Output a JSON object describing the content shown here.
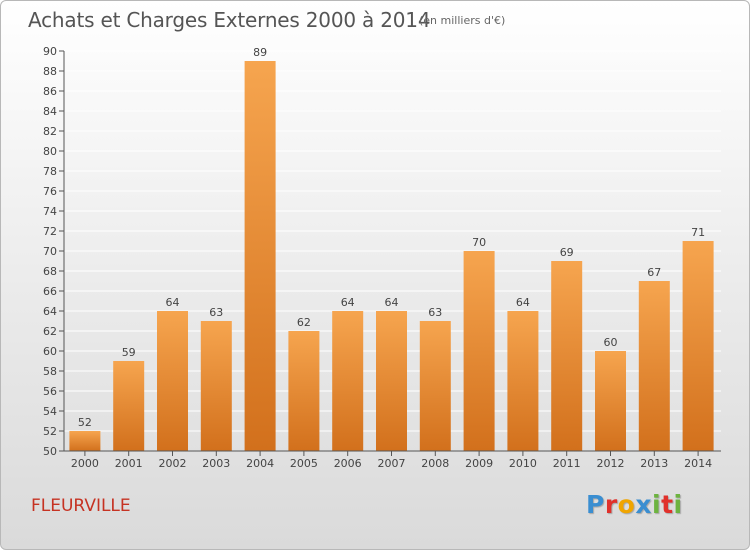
{
  "header": {
    "title": "Achats et Charges Externes 2000 à 2014",
    "unit": "(en milliers d'€)"
  },
  "footer": {
    "place": "FLEURVILLE",
    "logo_letters": [
      "P",
      "r",
      "o",
      "x",
      "i",
      "t",
      "i"
    ],
    "logo_colors": [
      "#3a8ed1",
      "#e0312b",
      "#f0a500",
      "#3a8ed1",
      "#6db33f",
      "#e0312b",
      "#6db33f"
    ]
  },
  "colors": {
    "bar_top": "#f6a54f",
    "bar_bottom": "#d2701c",
    "grid": "#ffffff",
    "axis": "#555555",
    "text": "#444444"
  },
  "chart_data": {
    "type": "bar",
    "title": "Achats et Charges Externes 2000 à 2014",
    "subtitle": "(en milliers d'€)",
    "categories": [
      "2000",
      "2001",
      "2002",
      "2003",
      "2004",
      "2005",
      "2006",
      "2007",
      "2008",
      "2009",
      "2010",
      "2011",
      "2012",
      "2013",
      "2014"
    ],
    "values": [
      52,
      59,
      64,
      63,
      89,
      62,
      64,
      64,
      63,
      70,
      64,
      69,
      60,
      67,
      71
    ],
    "ylim": [
      50,
      90
    ],
    "yticks": [
      50,
      52,
      54,
      56,
      58,
      60,
      62,
      64,
      66,
      68,
      70,
      72,
      74,
      76,
      78,
      80,
      82,
      84,
      86,
      88,
      90
    ],
    "grid": true,
    "data_labels": true
  }
}
